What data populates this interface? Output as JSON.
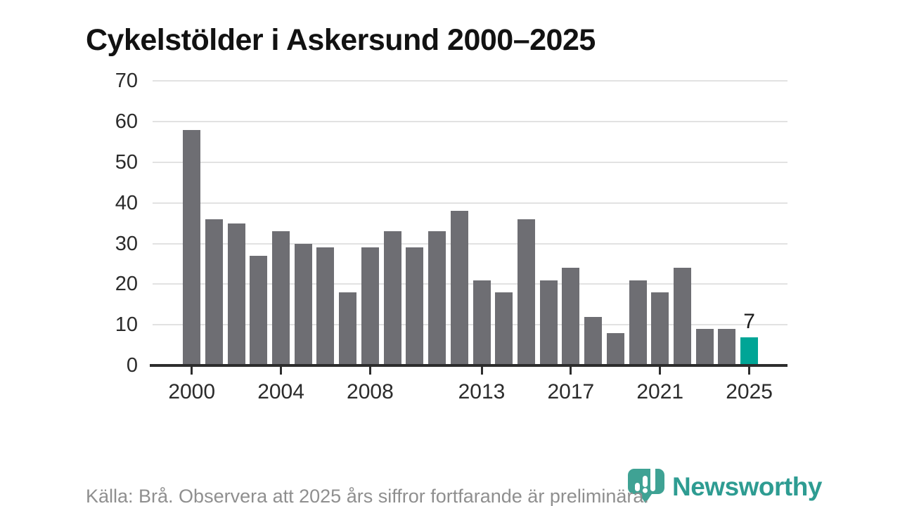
{
  "header": {
    "title": "Cykelstölder i Askersund 2000–2025"
  },
  "chart_data": {
    "type": "bar",
    "title": "Cykelstölder i Askersund 2000–2025",
    "categories": [
      "2000",
      "2001",
      "2002",
      "2003",
      "2004",
      "2005",
      "2006",
      "2007",
      "2008",
      "2009",
      "2010",
      "2011",
      "2012",
      "2013",
      "2014",
      "2015",
      "2016",
      "2017",
      "2018",
      "2019",
      "2020",
      "2021",
      "2022",
      "2023",
      "2024",
      "2025"
    ],
    "values": [
      58,
      36,
      35,
      27,
      33,
      30,
      29,
      18,
      29,
      33,
      29,
      33,
      38,
      21,
      18,
      36,
      21,
      24,
      12,
      8,
      21,
      18,
      24,
      9,
      9,
      7
    ],
    "bar_color": "#6e6e73",
    "highlight_category": "2025",
    "highlight_color": "#00a596",
    "value_label": {
      "category": "2025",
      "text": "7"
    },
    "xlabel": "",
    "ylabel": "",
    "ylim": [
      0,
      70
    ],
    "yticks": [
      0,
      10,
      20,
      30,
      40,
      50,
      60,
      70
    ],
    "xtick_labels": [
      "2000",
      "2004",
      "2008",
      "2013",
      "2017",
      "2021",
      "2025"
    ],
    "grid": true,
    "legend": false
  },
  "footer": {
    "source_note": "Källa: Brå. Observera att 2025 års siffror fortfarande är preliminära."
  },
  "branding": {
    "wordmark": "Newsworthy",
    "icon": "newsworthy-pin-barchart-icon",
    "wordmark_color": "#2e9c92",
    "icon_color": "#3fa294"
  }
}
